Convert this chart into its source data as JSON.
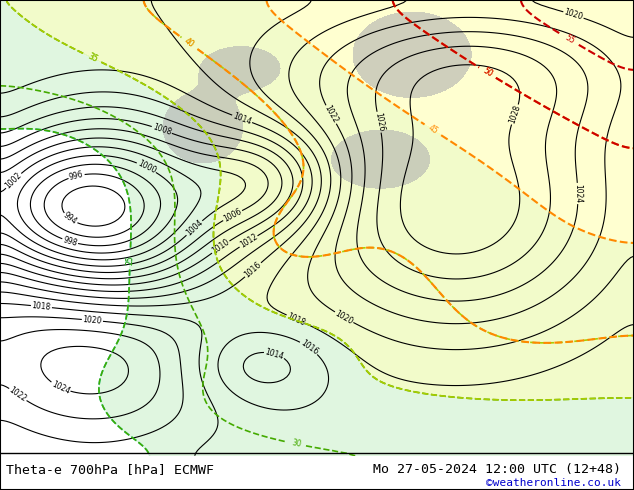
{
  "title_left": "Theta-e 700hPa [hPa] ECMWF",
  "title_right": "Mo 27-05-2024 12:00 UTC (12+48)",
  "watermark": "©weatheronline.co.uk",
  "watermark_color": "#0000cc",
  "bg_color": "#e8f4e8",
  "fig_width": 6.34,
  "fig_height": 4.9,
  "dpi": 100,
  "border_color": "#000000",
  "title_fontsize": 9.5,
  "watermark_fontsize": 8
}
